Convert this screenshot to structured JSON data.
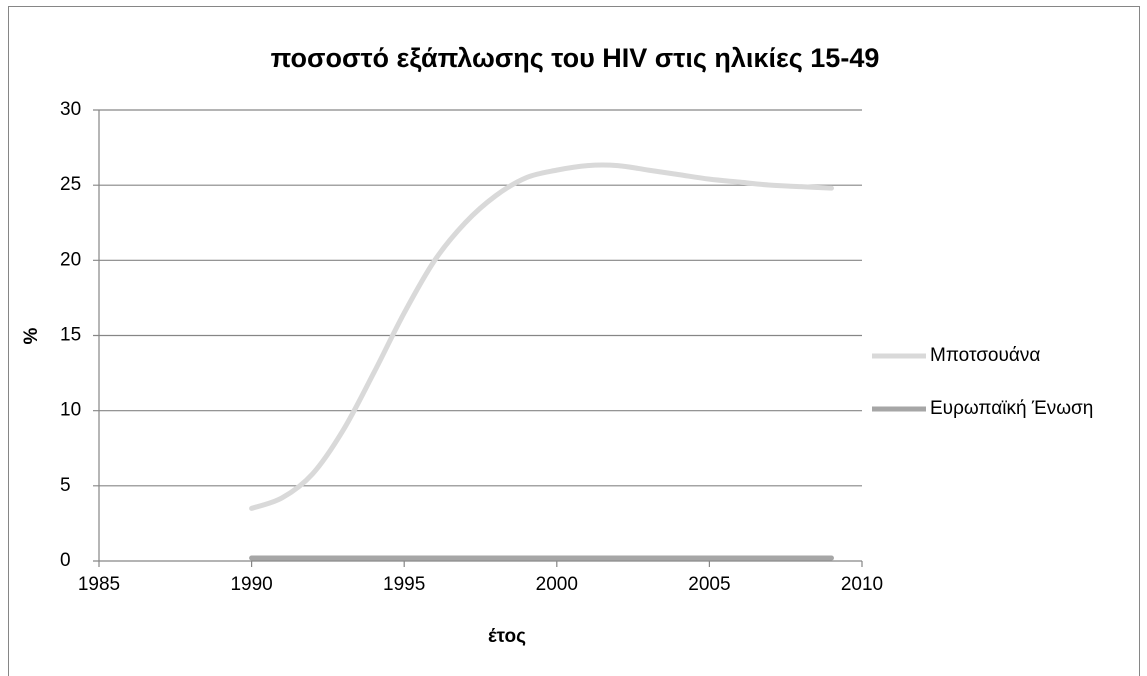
{
  "chart_data": {
    "type": "line",
    "title": "ποσοστό εξάπλωσης του HIV στις ηλικίες 15-49",
    "xlabel": "έτος",
    "ylabel": "%",
    "x": [
      1990,
      1991,
      1992,
      1993,
      1994,
      1995,
      1996,
      1997,
      1998,
      1999,
      2000,
      2001,
      2002,
      2003,
      2004,
      2005,
      2006,
      2007,
      2008,
      2009
    ],
    "series": [
      {
        "name": "Μποτσουάνα",
        "color": "#d9d9d9",
        "values": [
          3.5,
          4.2,
          5.8,
          8.7,
          12.5,
          16.5,
          20,
          22.5,
          24.3,
          25.5,
          26,
          26.3,
          26.3,
          26,
          25.7,
          25.4,
          25.2,
          25,
          24.9,
          24.8
        ]
      },
      {
        "name": "Ευρωπαϊκή Ένωση",
        "color": "#a6a6a6",
        "values": [
          0.2,
          0.2,
          0.2,
          0.2,
          0.2,
          0.2,
          0.2,
          0.2,
          0.2,
          0.2,
          0.2,
          0.2,
          0.2,
          0.2,
          0.2,
          0.2,
          0.2,
          0.2,
          0.2,
          0.2
        ]
      }
    ],
    "xlim": [
      1985,
      2010
    ],
    "xticks": [
      1985,
      1990,
      1995,
      2000,
      2005,
      2010
    ],
    "ylim": [
      0,
      30
    ],
    "yticks": [
      0,
      5,
      10,
      15,
      20,
      25,
      30
    ],
    "grid": true,
    "smooth": true,
    "legend": "right"
  }
}
